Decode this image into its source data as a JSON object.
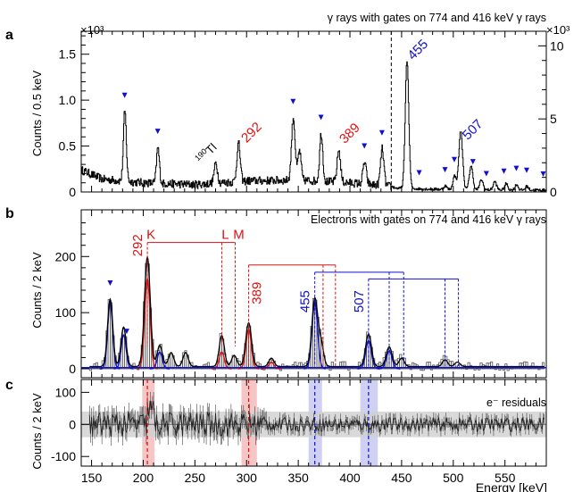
{
  "figure": {
    "x_axis": {
      "label": "Energy [keV]",
      "range": [
        140,
        590
      ],
      "ticks": [
        150,
        200,
        250,
        300,
        350,
        400,
        450,
        500,
        550
      ]
    }
  },
  "chart_data": [
    {
      "panel": "a",
      "type": "line",
      "title": "γ rays with gates on 774 and 416 keV γ rays",
      "ylabel": "Counts / 0.5 keV",
      "exponent_label": "×10³",
      "ylim": [
        0,
        1750
      ],
      "y_ticks": [
        {
          "value": 0,
          "label": "0"
        },
        {
          "value": 500,
          "label": "0.5"
        },
        {
          "value": 1000,
          "label": "1.0"
        },
        {
          "value": 1500,
          "label": "1.5"
        }
      ],
      "right_axis": {
        "applies_above_x": 440,
        "ylim": [
          0,
          11000
        ],
        "ticks": [
          0,
          5,
          10
        ],
        "exponent_label": "×10³"
      },
      "dashed_line_x": 440,
      "baseline": [
        [
          140,
          240
        ],
        [
          160,
          140
        ],
        [
          200,
          100
        ],
        [
          250,
          80
        ],
        [
          300,
          120
        ],
        [
          350,
          130
        ],
        [
          400,
          100
        ],
        [
          440,
          60
        ],
        [
          445,
          40
        ],
        [
          500,
          25
        ],
        [
          590,
          20
        ]
      ],
      "peaks": [
        {
          "x": 182,
          "height": 760,
          "width": 1.4
        },
        {
          "x": 214,
          "height": 390,
          "width": 1.4
        },
        {
          "x": 270,
          "height": 220,
          "width": 1.6
        },
        {
          "x": 292,
          "height": 420,
          "width": 1.6
        },
        {
          "x": 345,
          "height": 680,
          "width": 1.7
        },
        {
          "x": 351,
          "height": 320,
          "width": 1.5
        },
        {
          "x": 372,
          "height": 520,
          "width": 1.5
        },
        {
          "x": 389,
          "height": 350,
          "width": 1.6
        },
        {
          "x": 414,
          "height": 240,
          "width": 1.6
        },
        {
          "x": 431,
          "height": 400,
          "width": 1.6
        },
        {
          "x": 455,
          "height": 1395,
          "width": 1.7
        },
        {
          "x": 492,
          "height": 40,
          "width": 1.5
        },
        {
          "x": 501,
          "height": 150,
          "width": 1.6
        },
        {
          "x": 507,
          "height": 640,
          "width": 1.8
        },
        {
          "x": 517,
          "height": 260,
          "width": 1.7
        },
        {
          "x": 527,
          "height": 110,
          "width": 1.6
        },
        {
          "x": 540,
          "height": 90,
          "width": 1.6
        },
        {
          "x": 551,
          "height": 70,
          "width": 1.5
        },
        {
          "x": 561,
          "height": 60,
          "width": 1.5
        },
        {
          "x": 571,
          "height": 40,
          "width": 1.5
        }
      ],
      "markers": [
        182,
        214,
        345,
        372,
        414,
        431,
        467,
        492,
        501,
        519,
        532,
        549,
        561,
        571,
        587
      ],
      "peak_labels": [
        {
          "text": "292",
          "x": 300,
          "y": 530,
          "color": "#dd1111",
          "rotate": -45
        },
        {
          "text": "389",
          "x": 395,
          "y": 520,
          "color": "#dd1111",
          "rotate": -45
        },
        {
          "text": "455",
          "x": 461,
          "y": 1430,
          "color": "#1111cc",
          "rotate": -45
        },
        {
          "text": "507",
          "x": 514,
          "y": 560,
          "color": "#1111cc",
          "rotate": -45
        }
      ],
      "tl_label": {
        "mass": "190",
        "symbol": "Tl",
        "x": 256,
        "y": 300
      }
    },
    {
      "panel": "b",
      "type": "bar",
      "title": "Electrons with gates on 774 and 416 keV γ rays",
      "ylabel": "Counts / 2 keV",
      "ylim": [
        0,
        280
      ],
      "y_ticks": [
        0,
        100,
        200
      ],
      "electron_peaks": [
        {
          "x": 168,
          "height": 120,
          "width": 2.5
        },
        {
          "x": 181,
          "height": 70,
          "width": 2.5
        },
        {
          "x": 204,
          "height": 195,
          "width": 2.8
        },
        {
          "x": 216,
          "height": 38,
          "width": 2.5
        },
        {
          "x": 227,
          "height": 25,
          "width": 2.5
        },
        {
          "x": 241,
          "height": 25,
          "width": 2.5
        },
        {
          "x": 276,
          "height": 55,
          "width": 2.5
        },
        {
          "x": 288,
          "height": 20,
          "width": 2.5
        },
        {
          "x": 302,
          "height": 78,
          "width": 2.8
        },
        {
          "x": 324,
          "height": 15,
          "width": 2.5
        },
        {
          "x": 366,
          "height": 120,
          "width": 2.8
        },
        {
          "x": 372,
          "height": 40,
          "width": 2.5
        },
        {
          "x": 418,
          "height": 58,
          "width": 2.8
        },
        {
          "x": 438,
          "height": 35,
          "width": 2.8
        },
        {
          "x": 450,
          "height": 15,
          "width": 2.5
        },
        {
          "x": 492,
          "height": 12,
          "width": 2.5
        },
        {
          "x": 504,
          "height": 8,
          "width": 2.5
        }
      ],
      "component_curves": [
        {
          "color": "#1111cc",
          "peaks": [
            [
              168,
              118,
              2.4
            ],
            [
              181,
              60,
              2.4
            ],
            [
              216,
              30,
              2.4
            ],
            [
              366,
              118,
              2.7
            ],
            [
              418,
              50,
              2.7
            ],
            [
              438,
              32,
              2.7
            ]
          ]
        },
        {
          "color": "#dd1111",
          "peaks": [
            [
              204,
              160,
              2.6
            ],
            [
              276,
              30,
              2.4
            ],
            [
              302,
              70,
              2.6
            ],
            [
              324,
              12,
              2.4
            ]
          ]
        }
      ],
      "markers": [
        168,
        184
      ],
      "group_292": {
        "label": "292",
        "color": "#dd1111",
        "lines": [
          {
            "x": 204,
            "text": "K"
          },
          {
            "x": 276,
            "text": "L"
          },
          {
            "x": 289,
            "text": "M"
          }
        ],
        "bracket_y": 225,
        "bottom_y": 40,
        "label_y": 200
      },
      "group_389": {
        "label": "389",
        "color": "#dd1111",
        "lines": [
          {
            "x": 302
          },
          {
            "x": 374
          },
          {
            "x": 386
          }
        ],
        "bracket_y": 185,
        "bottom_y": 5,
        "label_y": 115
      },
      "group_455": {
        "label": "455",
        "color": "#1111cc",
        "lines": [
          {
            "x": 366
          },
          {
            "x": 438
          },
          {
            "x": 452
          }
        ],
        "bracket_y": 172,
        "bottom_y": 5,
        "label_y": 100
      },
      "group_507": {
        "label": "507",
        "color": "#1111cc",
        "lines": [
          {
            "x": 418
          },
          {
            "x": 492
          },
          {
            "x": 505
          }
        ],
        "bracket_y": 160,
        "bottom_y": 5,
        "label_y": 100
      }
    },
    {
      "panel": "c",
      "type": "scatter",
      "title": "e⁻ residuals",
      "ylabel": "Counts / 2 keV",
      "ylim": [
        -130,
        140
      ],
      "y_ticks": [
        -100,
        0,
        100
      ],
      "band": [
        -40,
        40
      ],
      "highlights": [
        {
          "x0": 199,
          "x1": 211,
          "color": "#f4b8b8"
        },
        {
          "x0": 295,
          "x1": 310,
          "color": "#f4b8b8"
        },
        {
          "x0": 360,
          "x1": 373,
          "color": "#c4c4f0"
        },
        {
          "x0": 410,
          "x1": 427,
          "color": "#c4c4f0"
        }
      ],
      "dashed_lines": [
        {
          "x": 204,
          "color": "#dd1111"
        },
        {
          "x": 302,
          "color": "#dd1111"
        },
        {
          "x": 366,
          "color": "#1111cc"
        },
        {
          "x": 418,
          "color": "#1111cc"
        }
      ]
    }
  ]
}
